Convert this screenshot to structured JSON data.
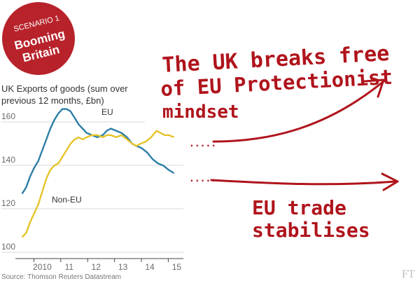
{
  "badge": {
    "line1": "SCENARIO 1",
    "line2": "Booming",
    "line3": "Britain",
    "color": "#b8222a"
  },
  "chart_data": {
    "type": "line",
    "title_line1": "UK Exports of goods (sum over",
    "title_line2": "previous 12 months, £bn)",
    "ylim": [
      100,
      165
    ],
    "yticks": [
      {
        "label": "160",
        "value": 160
      },
      {
        "label": "140",
        "value": 140
      },
      {
        "label": "120",
        "value": 120
      },
      {
        "label": "100",
        "value": 100
      }
    ],
    "xlim": [
      2009.5,
      2015.75
    ],
    "xticks": [
      {
        "label": "2010",
        "value": 2010.5
      },
      {
        "label": "11",
        "value": 2011.5
      },
      {
        "label": "12",
        "value": 2012.5
      },
      {
        "label": "13",
        "value": 2013.5
      },
      {
        "label": "14",
        "value": 2014.5
      },
      {
        "label": "15",
        "value": 2015.5
      }
    ],
    "grid": true,
    "series": [
      {
        "name": "EU",
        "color": "#2b7ea6",
        "points": [
          [
            2009.75,
            125
          ],
          [
            2009.9,
            128
          ],
          [
            2010.05,
            133
          ],
          [
            2010.2,
            137
          ],
          [
            2010.35,
            140
          ],
          [
            2010.5,
            145
          ],
          [
            2010.65,
            150
          ],
          [
            2010.8,
            155
          ],
          [
            2010.95,
            159
          ],
          [
            2011.1,
            162
          ],
          [
            2011.25,
            164
          ],
          [
            2011.4,
            164
          ],
          [
            2011.55,
            163
          ],
          [
            2011.7,
            160
          ],
          [
            2011.85,
            157
          ],
          [
            2012.0,
            155
          ],
          [
            2012.15,
            153
          ],
          [
            2012.35,
            152
          ],
          [
            2012.55,
            151
          ],
          [
            2012.75,
            152
          ],
          [
            2012.9,
            154
          ],
          [
            2013.05,
            155
          ],
          [
            2013.25,
            154
          ],
          [
            2013.45,
            153
          ],
          [
            2013.65,
            151
          ],
          [
            2013.85,
            148
          ],
          [
            2014.0,
            147
          ],
          [
            2014.2,
            146
          ],
          [
            2014.4,
            144
          ],
          [
            2014.6,
            141
          ],
          [
            2014.8,
            139
          ],
          [
            2015.0,
            138
          ],
          [
            2015.2,
            136
          ],
          [
            2015.4,
            134.5
          ]
        ]
      },
      {
        "name": "Non-EU",
        "color": "#e4c42a",
        "points": [
          [
            2009.75,
            105
          ],
          [
            2009.9,
            107
          ],
          [
            2010.05,
            112
          ],
          [
            2010.2,
            116
          ],
          [
            2010.35,
            120
          ],
          [
            2010.5,
            126
          ],
          [
            2010.65,
            132
          ],
          [
            2010.8,
            136
          ],
          [
            2010.95,
            138
          ],
          [
            2011.1,
            139
          ],
          [
            2011.25,
            142
          ],
          [
            2011.4,
            145
          ],
          [
            2011.55,
            148
          ],
          [
            2011.7,
            150
          ],
          [
            2011.85,
            151
          ],
          [
            2012.0,
            150
          ],
          [
            2012.15,
            151
          ],
          [
            2012.35,
            152
          ],
          [
            2012.55,
            152
          ],
          [
            2012.75,
            151
          ],
          [
            2012.9,
            152
          ],
          [
            2013.05,
            152
          ],
          [
            2013.25,
            151
          ],
          [
            2013.45,
            152
          ],
          [
            2013.65,
            150
          ],
          [
            2013.85,
            148
          ],
          [
            2014.0,
            147
          ],
          [
            2014.15,
            148
          ],
          [
            2014.35,
            149
          ],
          [
            2014.55,
            151
          ],
          [
            2014.75,
            154
          ],
          [
            2014.9,
            153
          ],
          [
            2015.05,
            152
          ],
          [
            2015.2,
            152
          ],
          [
            2015.4,
            151
          ]
        ]
      }
    ],
    "source": "Source: Thomson Reuters Datastream"
  },
  "annotations": {
    "top_line1": "The UK breaks free",
    "top_line2": "of EU Protectionist",
    "top_line3": "mindset",
    "bottom_line1": "EU trade",
    "bottom_line2": "stabilises",
    "ink_color": "#b0141c"
  },
  "logo": {
    "text": "FT"
  }
}
